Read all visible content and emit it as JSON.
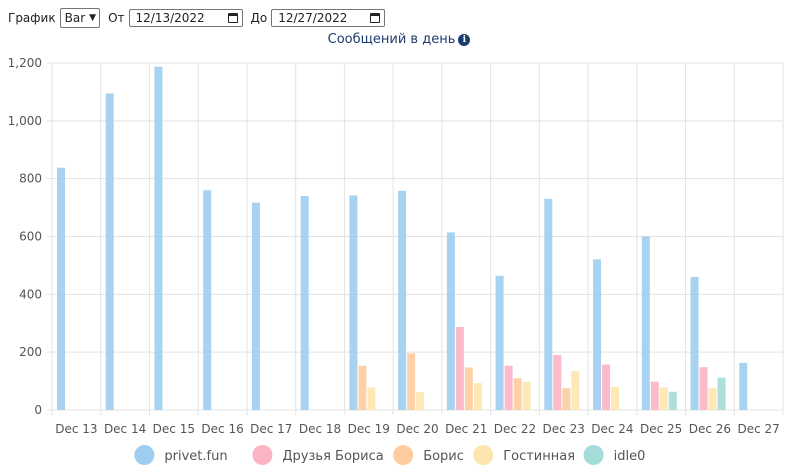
{
  "controls": {
    "chart_label": "График",
    "chart_type": "Bar",
    "from_label": "От",
    "from_date": "12/13/2022",
    "to_label": "До",
    "to_date": "12/27/2022"
  },
  "chart_data": {
    "type": "bar",
    "title": "Сообщений в день",
    "categories": [
      "Dec 13",
      "Dec 14",
      "Dec 15",
      "Dec 16",
      "Dec 17",
      "Dec 18",
      "Dec 19",
      "Dec 20",
      "Dec 21",
      "Dec 22",
      "Dec 23",
      "Dec 24",
      "Dec 25",
      "Dec 26",
      "Dec 27"
    ],
    "ylim": [
      0,
      1200
    ],
    "yticks": [
      0,
      200,
      400,
      600,
      800,
      1000,
      1200
    ],
    "ytick_labels": [
      "0",
      "200",
      "400",
      "600",
      "800",
      "1,000",
      "1,200"
    ],
    "grid": true,
    "legend": "bottom",
    "series": [
      {
        "name": "privet.fun",
        "color": "#9fcdf0",
        "values": [
          838,
          1095,
          1187,
          760,
          717,
          740,
          742,
          758,
          614,
          464,
          730,
          521,
          600,
          460,
          163
        ]
      },
      {
        "name": "Друзья Бориса",
        "color": "#fbb4c2",
        "values": [
          0,
          0,
          0,
          0,
          0,
          0,
          0,
          0,
          287,
          153,
          190,
          157,
          98,
          148,
          0
        ]
      },
      {
        "name": "Борис",
        "color": "#fdcc9f",
        "values": [
          0,
          0,
          0,
          0,
          0,
          0,
          153,
          196,
          147,
          110,
          75,
          0,
          0,
          0,
          0
        ]
      },
      {
        "name": "Гостинная",
        "color": "#fde6ae",
        "values": [
          0,
          0,
          0,
          0,
          0,
          0,
          78,
          62,
          93,
          97,
          135,
          80,
          78,
          75,
          0
        ]
      },
      {
        "name": "idle0",
        "color": "#a4dcda",
        "values": [
          0,
          0,
          0,
          0,
          0,
          0,
          0,
          0,
          0,
          0,
          0,
          0,
          63,
          112,
          0
        ]
      }
    ]
  }
}
